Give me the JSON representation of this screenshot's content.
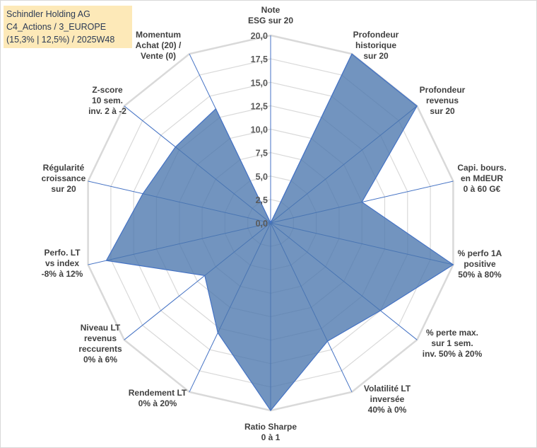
{
  "chart_data": {
    "type": "radar",
    "title_lines": [
      "Schindler Holding AG",
      "C4_Actions / 3_EUROPE",
      "(15,3% | 12,5%) / 2025W48"
    ],
    "axes": [
      {
        "label": [
          "Note",
          "ESG sur 20"
        ],
        "value": 0.0
      },
      {
        "label": [
          "Profondeur",
          "historique",
          "sur 20"
        ],
        "value": 20.0
      },
      {
        "label": [
          "Profondeur",
          "revenus",
          "sur 20"
        ],
        "value": 20.0
      },
      {
        "label": [
          "Capi. bours.",
          "en MdEUR",
          "0 à 60 G€"
        ],
        "value": 10.0
      },
      {
        "label": [
          "% perfo 1A",
          "positive",
          "50% à 80%"
        ],
        "value": 20.0
      },
      {
        "label": [
          "% perte max.",
          "sur 1 sem.",
          "inv. 50% à 20%"
        ],
        "value": 15.0
      },
      {
        "label": [
          "Volatilité LT",
          "inversée",
          "40% à 0%"
        ],
        "value": 14.0
      },
      {
        "label": [
          "Ratio Sharpe",
          "0 à 1"
        ],
        "value": 20.0
      },
      {
        "label": [
          "Rendement LT",
          "0% à 20%"
        ],
        "value": 13.0
      },
      {
        "label": [
          "Niveau LT",
          "revenus",
          "reccurents",
          "0% à 6%"
        ],
        "value": 9.0
      },
      {
        "label": [
          "Perfo. LT",
          "vs index",
          "-8% à 12%"
        ],
        "value": 18.0
      },
      {
        "label": [
          "Régularité",
          "croissance",
          "sur 20"
        ],
        "value": 14.0
      },
      {
        "label": [
          "Z-score",
          "10 sem.",
          "inv. 2 à -2"
        ],
        "value": 13.0
      },
      {
        "label": [
          "Momentum",
          "Achat (20) /",
          "Vente (0)"
        ],
        "value": 13.5
      }
    ],
    "ticks": [
      "0,0",
      "2,5",
      "5,0",
      "7,5",
      "10,0",
      "12,5",
      "15,0",
      "17,5",
      "20,0"
    ],
    "rmin": 0,
    "rmax": 20,
    "fill_color": "#4a76ad",
    "stroke_color": "#4472c4",
    "grid_color": "#d9d9d9"
  }
}
